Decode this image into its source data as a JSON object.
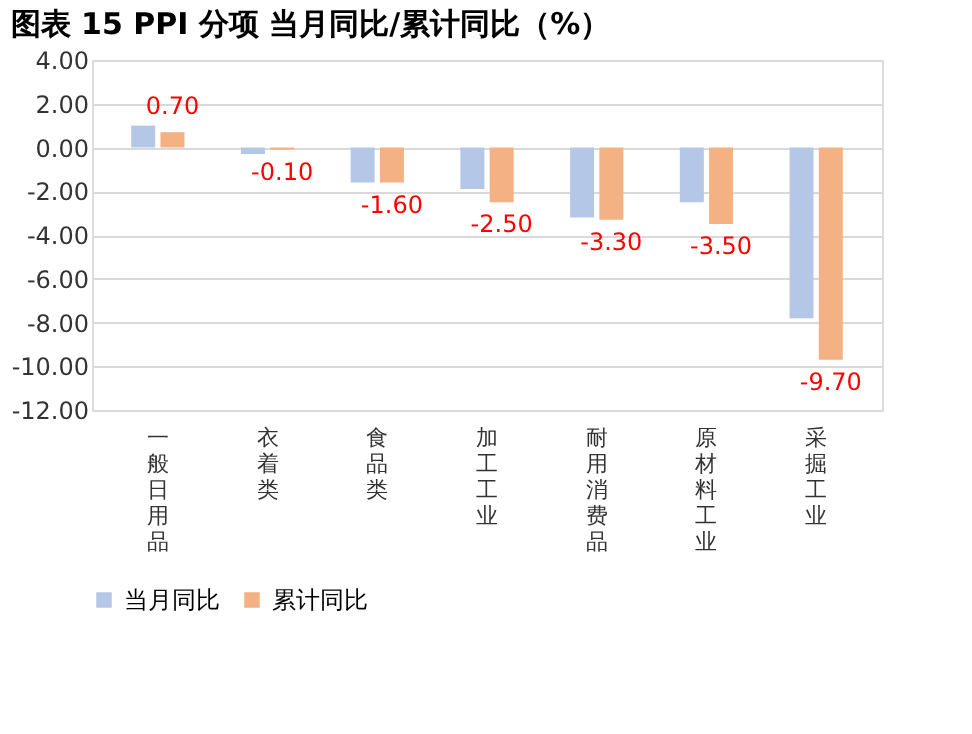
{
  "chart_data": {
    "type": "bar",
    "title": "图表 15  PPI 分项  当月同比/累计同比（%）",
    "categories": [
      "一般日用品",
      "衣着类",
      "食品类",
      "加工工业",
      "耐用消费品",
      "原材料工业",
      "采掘工业"
    ],
    "series": [
      {
        "name": "当月同比",
        "color": "#b4c7e7",
        "values": [
          1.0,
          -0.3,
          -1.6,
          -1.9,
          -3.2,
          -2.5,
          -7.8
        ]
      },
      {
        "name": "累计同比",
        "color": "#f4b183",
        "values": [
          0.7,
          -0.1,
          -1.6,
          -2.5,
          -3.3,
          -3.5,
          -9.7
        ],
        "value_labels": [
          "0.70",
          "-0.10",
          "-1.60",
          "-2.50",
          "-3.30",
          "-3.50",
          "-9.70"
        ]
      }
    ],
    "ylim": [
      -12,
      4
    ],
    "yticks": [
      {
        "value": 4,
        "label": "4.00"
      },
      {
        "value": 2,
        "label": "2.00"
      },
      {
        "value": 0,
        "label": "0.00"
      },
      {
        "value": -2,
        "label": "-2.00"
      },
      {
        "value": -4,
        "label": "-4.00"
      },
      {
        "value": -6,
        "label": "-6.00"
      },
      {
        "value": -8,
        "label": "-8.00"
      },
      {
        "value": -10,
        "label": "-10.00"
      },
      {
        "value": -12,
        "label": "-12.00"
      }
    ],
    "grid": "y",
    "legend": "bottom"
  }
}
